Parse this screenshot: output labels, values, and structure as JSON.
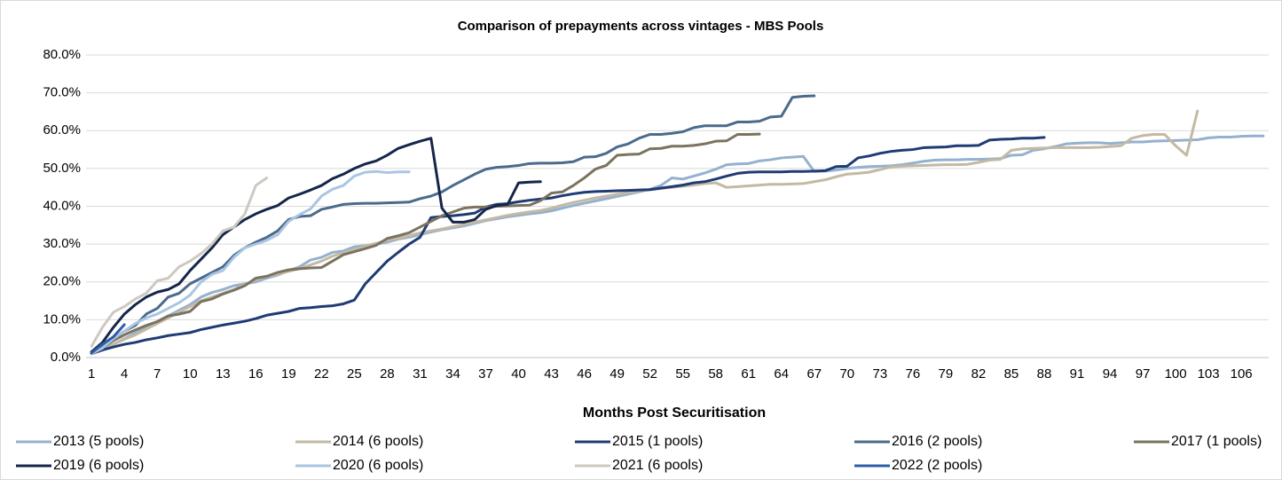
{
  "chart_data": {
    "type": "line",
    "title": "Comparison of prepayments across vintages - MBS Pools",
    "x_label": "Months Post Securitisation",
    "categories": [
      "1",
      null,
      null,
      "4",
      null,
      null,
      "7",
      null,
      null,
      "10",
      null,
      null,
      "13",
      null,
      null,
      "16",
      null,
      null,
      "19",
      null,
      null,
      "22",
      null,
      null,
      "25",
      null,
      null,
      "28",
      null,
      null,
      "31",
      null,
      null,
      "34",
      null,
      null,
      "37",
      null,
      null,
      "40",
      null,
      null,
      "43",
      null,
      null,
      "46",
      null,
      null,
      "49",
      null,
      null,
      "52",
      null,
      null,
      "55",
      null,
      null,
      "58",
      null,
      null,
      "61",
      null,
      null,
      "64",
      null,
      null,
      "67",
      null,
      null,
      "70",
      null,
      null,
      "73",
      null,
      null,
      "76",
      null,
      null,
      "79",
      null,
      null,
      "82",
      null,
      null,
      "85",
      null,
      null,
      "88",
      null,
      null,
      "91",
      null,
      null,
      "94",
      null,
      null,
      "97",
      null,
      null,
      "100",
      null,
      null,
      "103",
      null,
      null,
      "106",
      null,
      null
    ],
    "ylim": [
      0,
      80
    ],
    "yticks": [
      {
        "value": 0,
        "label": "0.0%"
      },
      {
        "value": 10,
        "label": "10.0%"
      },
      {
        "value": 20,
        "label": "20.0%"
      },
      {
        "value": 30,
        "label": "30.0%"
      },
      {
        "value": 40,
        "label": "40.0%"
      },
      {
        "value": 50,
        "label": "50.0%"
      },
      {
        "value": 60,
        "label": "60.0%"
      },
      {
        "value": 70,
        "label": "70.0%"
      },
      {
        "value": 80,
        "label": "80.0%"
      }
    ],
    "grid": true,
    "legend": "bottom",
    "series": [
      {
        "name": "2013 (5 pools)",
        "color": "#94b1cf",
        "values": [
          1,
          2,
          3.5,
          5,
          6.5,
          8,
          9.5,
          11,
          12.5,
          14,
          16,
          17.2,
          18,
          19,
          19.5,
          20,
          21,
          21.8,
          23,
          24,
          25.8,
          26.5,
          27.8,
          28.2,
          29.3,
          29.6,
          30,
          30.5,
          31.3,
          31.8,
          32.5,
          33.2,
          33.8,
          34.3,
          34.8,
          35.5,
          36.2,
          36.7,
          37.2,
          37.6,
          38,
          38.3,
          38.8,
          39.5,
          40.2,
          40.8,
          41.4,
          42,
          42.6,
          43.2,
          43.8,
          44.5,
          45.5,
          47.5,
          47.2,
          48,
          48.8,
          49.8,
          51,
          51.2,
          51.3,
          52,
          52.3,
          52.8,
          53,
          53.2,
          49.2,
          49.3,
          49.6,
          50,
          50.3,
          50.5,
          50.6,
          50.7,
          51,
          51.4,
          51.9,
          52.2,
          52.3,
          52.3,
          52.4,
          52.4,
          52.5,
          52.6,
          53.5,
          53.6,
          54.8,
          55.2,
          55.8,
          56.5,
          56.7,
          56.8,
          56.8,
          56.6,
          56.8,
          57,
          57,
          57.2,
          57.3,
          57.4,
          57.5,
          57.6,
          58.1,
          58.3,
          58.3,
          58.5,
          58.6,
          58.6
        ]
      },
      {
        "name": "2014 (6 pools)",
        "color": "#c3b9a4",
        "values": [
          1,
          2,
          3.5,
          4.8,
          6,
          7.5,
          9,
          10.5,
          12,
          13.5,
          15,
          16,
          17,
          18,
          19.3,
          20.5,
          21.5,
          22,
          22.8,
          23.5,
          24.5,
          25.5,
          26.8,
          27.8,
          28.5,
          29.5,
          30.2,
          31,
          31.5,
          32.2,
          33,
          33.5,
          34,
          34.6,
          35.2,
          35.8,
          36.4,
          37,
          37.6,
          38.1,
          38.5,
          38.9,
          39.5,
          40.3,
          41,
          41.6,
          42.2,
          42.7,
          43.2,
          43.6,
          44,
          44.4,
          44.7,
          45,
          45.3,
          45.6,
          46,
          46.2,
          45,
          45.2,
          45.4,
          45.6,
          45.8,
          45.8,
          45.9,
          46,
          46.5,
          47,
          47.8,
          48.5,
          48.7,
          49,
          49.7,
          50.4,
          50.6,
          50.7,
          50.8,
          50.9,
          51,
          51,
          51.1,
          51.6,
          52.2,
          52.4,
          54.8,
          55.2,
          55.3,
          55.4,
          55.5,
          55.5,
          55.5,
          55.5,
          55.6,
          55.8,
          56,
          58,
          58.7,
          59,
          59,
          56,
          53.5,
          65.2,
          null,
          null,
          null,
          null,
          null,
          null
        ]
      },
      {
        "name": "2015 (1 pools)",
        "color": "#1f3b73",
        "values": [
          1,
          2,
          2.8,
          3.5,
          4,
          4.7,
          5.2,
          5.8,
          6.2,
          6.6,
          7.4,
          8,
          8.6,
          9.1,
          9.6,
          10.3,
          11.2,
          11.7,
          12.2,
          13,
          13.2,
          13.5,
          13.7,
          14.2,
          15.2,
          19.5,
          22.5,
          25.5,
          27.8,
          30,
          31.8,
          37,
          37.3,
          37.5,
          37.8,
          38.2,
          39.8,
          40.5,
          40.7,
          41.2,
          41.6,
          41.9,
          42.2,
          42.8,
          43.3,
          43.7,
          43.9,
          44,
          44.1,
          44.2,
          44.3,
          44.4,
          44.8,
          45.2,
          45.6,
          46.2,
          46.5,
          47.2,
          48,
          48.7,
          49,
          49.1,
          49.1,
          49.1,
          49.2,
          49.2,
          49.3,
          49.4,
          50.5,
          50.6,
          52.8,
          53.3,
          54,
          54.5,
          54.8,
          55,
          55.5,
          55.6,
          55.7,
          56,
          56,
          56.1,
          57.5,
          57.7,
          57.8,
          58,
          58,
          58.2,
          null,
          null,
          null,
          null,
          null,
          null,
          null,
          null,
          null,
          null,
          null,
          null,
          null,
          null,
          null,
          null,
          null,
          null,
          null,
          null
        ]
      },
      {
        "name": "2016 (2 pools)",
        "color": "#4b6b8c",
        "values": [
          1.5,
          3,
          5,
          7,
          8.5,
          11.5,
          13,
          16,
          17,
          19.5,
          21,
          22.5,
          24,
          27,
          29,
          30.5,
          31.8,
          33.5,
          36.5,
          37.3,
          37.5,
          39.2,
          39.8,
          40.5,
          40.7,
          40.8,
          40.8,
          40.9,
          41,
          41.1,
          42,
          42.7,
          43.8,
          45.5,
          47,
          48.5,
          49.8,
          50.3,
          50.5,
          50.8,
          51.3,
          51.4,
          51.4,
          51.5,
          51.8,
          53,
          53.1,
          54,
          55.7,
          56.5,
          58,
          59,
          59,
          59.3,
          59.7,
          60.8,
          61.3,
          61.3,
          61.3,
          62.3,
          62.3,
          62.5,
          63.6,
          63.8,
          68.8,
          69.1,
          69.2,
          null,
          null,
          null,
          null,
          null,
          null,
          null,
          null,
          null,
          null,
          null,
          null,
          null,
          null,
          null,
          null,
          null,
          null,
          null,
          null,
          null,
          null,
          null,
          null,
          null,
          null,
          null,
          null,
          null,
          null,
          null,
          null,
          null,
          null,
          null,
          null,
          null,
          null,
          null,
          null,
          null
        ]
      },
      {
        "name": "2017 (1 pools)",
        "color": "#7a735f",
        "values": [
          1,
          2.5,
          4.5,
          6,
          7.3,
          8.5,
          9.5,
          11,
          11.5,
          12.2,
          14.8,
          15.5,
          16.8,
          17.8,
          19,
          21,
          21.5,
          22.5,
          23.2,
          23.5,
          23.7,
          23.8,
          25.5,
          27.2,
          28,
          28.8,
          29.7,
          31.5,
          32.2,
          33,
          34.5,
          36,
          37.5,
          38.5,
          39.5,
          39.8,
          39.8,
          40,
          40.1,
          40.2,
          40.3,
          41.5,
          43.5,
          43.8,
          45.5,
          47.5,
          49.8,
          50.8,
          53.5,
          53.7,
          53.8,
          55.2,
          55.3,
          55.9,
          55.9,
          56.1,
          56.5,
          57.2,
          57.3,
          59,
          59,
          59.1,
          null,
          null,
          null,
          null,
          null,
          null,
          null,
          null,
          null,
          null,
          null,
          null,
          null,
          null,
          null,
          null,
          null,
          null,
          null,
          null,
          null,
          null,
          null,
          null,
          null,
          null,
          null,
          null,
          null,
          null,
          null,
          null,
          null,
          null,
          null,
          null,
          null,
          null,
          null,
          null,
          null,
          null,
          null,
          null,
          null,
          null
        ]
      },
      {
        "name": "2019 (6 pools)",
        "color": "#15264a",
        "values": [
          1.5,
          4,
          8,
          11.5,
          14,
          16,
          17.3,
          18,
          19.5,
          23,
          26,
          29,
          32.5,
          34.5,
          36.5,
          38,
          39.2,
          40.2,
          42.2,
          43.2,
          44.3,
          45.5,
          47.3,
          48.5,
          50,
          51.2,
          52,
          53.5,
          55.3,
          56.3,
          57.2,
          58,
          39.5,
          35.8,
          35.8,
          36.5,
          39.2,
          40.2,
          40.5,
          46.2,
          46.4,
          46.5,
          null,
          null,
          null,
          null,
          null,
          null,
          null,
          null,
          null,
          null,
          null,
          null,
          null,
          null,
          null,
          null,
          null,
          null,
          null,
          null,
          null,
          null,
          null,
          null,
          null,
          null,
          null,
          null,
          null,
          null,
          null,
          null,
          null,
          null,
          null,
          null,
          null,
          null,
          null,
          null,
          null,
          null,
          null,
          null,
          null,
          null,
          null,
          null,
          null,
          null,
          null,
          null,
          null,
          null,
          null,
          null,
          null,
          null,
          null,
          null,
          null,
          null,
          null,
          null,
          null,
          null
        ]
      },
      {
        "name": "2020 (6 pools)",
        "color": "#aac5e2",
        "values": [
          1,
          2.5,
          5,
          7,
          9,
          10.5,
          11.5,
          13,
          14.5,
          16.5,
          20,
          22,
          23,
          26.5,
          29,
          30,
          31,
          32.5,
          36,
          37.8,
          39.3,
          42.7,
          44.5,
          45.5,
          48,
          49,
          49.2,
          48.9,
          49.1,
          49.1,
          null,
          null,
          null,
          null,
          null,
          null,
          null,
          null,
          null,
          null,
          null,
          null,
          null,
          null,
          null,
          null,
          null,
          null,
          null,
          null,
          null,
          null,
          null,
          null,
          null,
          null,
          null,
          null,
          null,
          null,
          null,
          null,
          null,
          null,
          null,
          null,
          null,
          null,
          null,
          null,
          null,
          null,
          null,
          null,
          null,
          null,
          null,
          null,
          null,
          null,
          null,
          null,
          null,
          null,
          null,
          null,
          null,
          null,
          null,
          null,
          null,
          null,
          null,
          null,
          null,
          null,
          null,
          null,
          null,
          null,
          null,
          null,
          null,
          null,
          null,
          null,
          null,
          null
        ]
      },
      {
        "name": "2021 (6 pools)",
        "color": "#cdc9c0",
        "values": [
          3,
          8,
          12,
          13.5,
          15.5,
          17,
          20.3,
          21,
          24,
          25.5,
          27.5,
          30,
          33.5,
          34.5,
          38,
          45.5,
          47.5,
          null,
          null,
          null,
          null,
          null,
          null,
          null,
          null,
          null,
          null,
          null,
          null,
          null,
          null,
          null,
          null,
          null,
          null,
          null,
          null,
          null,
          null,
          null,
          null,
          null,
          null,
          null,
          null,
          null,
          null,
          null,
          null,
          null,
          null,
          null,
          null,
          null,
          null,
          null,
          null,
          null,
          null,
          null,
          null,
          null,
          null,
          null,
          null,
          null,
          null,
          null,
          null,
          null,
          null,
          null,
          null,
          null,
          null,
          null,
          null,
          null,
          null,
          null,
          null,
          null,
          null,
          null,
          null,
          null,
          null,
          null,
          null,
          null,
          null,
          null,
          null,
          null,
          null,
          null,
          null,
          null,
          null,
          null,
          null,
          null,
          null,
          null,
          null,
          null,
          null,
          null
        ]
      },
      {
        "name": "2022 (2 pools)",
        "color": "#2e5ea8",
        "values": [
          1.2,
          3.5,
          5.5,
          8.7,
          null,
          null,
          null,
          null,
          null,
          null,
          null,
          null,
          null,
          null,
          null,
          null,
          null,
          null,
          null,
          null,
          null,
          null,
          null,
          null,
          null,
          null,
          null,
          null,
          null,
          null,
          null,
          null,
          null,
          null,
          null,
          null,
          null,
          null,
          null,
          null,
          null,
          null,
          null,
          null,
          null,
          null,
          null,
          null,
          null,
          null,
          null,
          null,
          null,
          null,
          null,
          null,
          null,
          null,
          null,
          null,
          null,
          null,
          null,
          null,
          null,
          null,
          null,
          null,
          null,
          null,
          null,
          null,
          null,
          null,
          null,
          null,
          null,
          null,
          null,
          null,
          null,
          null,
          null,
          null,
          null,
          null,
          null,
          null,
          null,
          null,
          null,
          null,
          null,
          null,
          null,
          null,
          null,
          null,
          null,
          null,
          null,
          null,
          null,
          null,
          null,
          null,
          null,
          null
        ]
      }
    ]
  }
}
